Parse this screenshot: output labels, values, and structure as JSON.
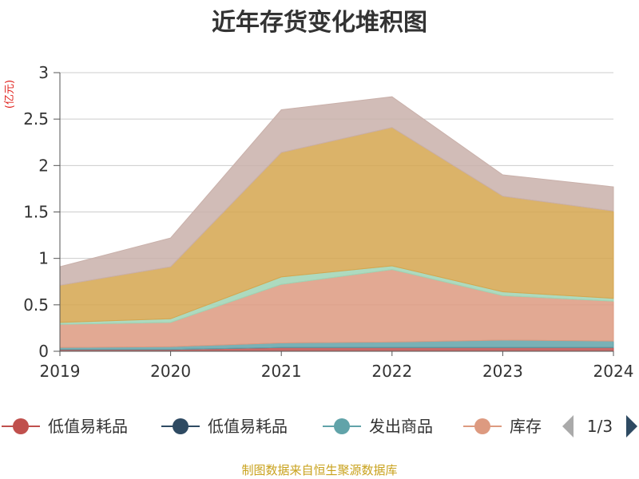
{
  "chart_data": {
    "type": "area",
    "stacked": true,
    "title": "近年存货变化堆积图",
    "unit_label": "(亿元)",
    "x": [
      "2019",
      "2020",
      "2021",
      "2022",
      "2023",
      "2024"
    ],
    "ylim": [
      0,
      3
    ],
    "yticks": [
      "0",
      "0.5",
      "1",
      "1.5",
      "2",
      "2.5",
      "3"
    ],
    "grid": true,
    "series": [
      {
        "name": "低值易耗品",
        "color": "#c0504d",
        "values": [
          0.02,
          0.02,
          0.04,
          0.04,
          0.04,
          0.04
        ]
      },
      {
        "name": "低值易耗品",
        "color": "#2e4a62",
        "values": [
          0.0,
          0.0,
          0.0,
          0.0,
          0.0,
          0.0
        ]
      },
      {
        "name": "发出商品",
        "color": "#61a3a9",
        "values": [
          0.02,
          0.03,
          0.05,
          0.06,
          0.08,
          0.07
        ]
      },
      {
        "name": "库存",
        "color": "#dd9a80",
        "values": [
          0.25,
          0.26,
          0.63,
          0.78,
          0.48,
          0.43
        ]
      },
      {
        "name": "",
        "color": "#9fd4b4",
        "values": [
          0.02,
          0.04,
          0.08,
          0.04,
          0.04,
          0.03
        ]
      },
      {
        "name": "",
        "color": "#d5a64f",
        "values": [
          0.4,
          0.56,
          1.34,
          1.49,
          1.03,
          0.94
        ]
      },
      {
        "name": "",
        "color": "#c9b0aa",
        "values": [
          0.2,
          0.31,
          0.46,
          0.33,
          0.23,
          0.26
        ]
      }
    ],
    "legend": {
      "placement": "bottom",
      "visible_items": [
        {
          "label": "低值易耗品",
          "color": "#c0504d"
        },
        {
          "label": "低值易耗品",
          "color": "#2e4a62"
        },
        {
          "label": "发出商品",
          "color": "#61a3a9"
        },
        {
          "label": "库存",
          "color": "#dd9a80"
        }
      ],
      "page": "1/3"
    },
    "source": "制图数据来自恒生聚源数据库"
  }
}
